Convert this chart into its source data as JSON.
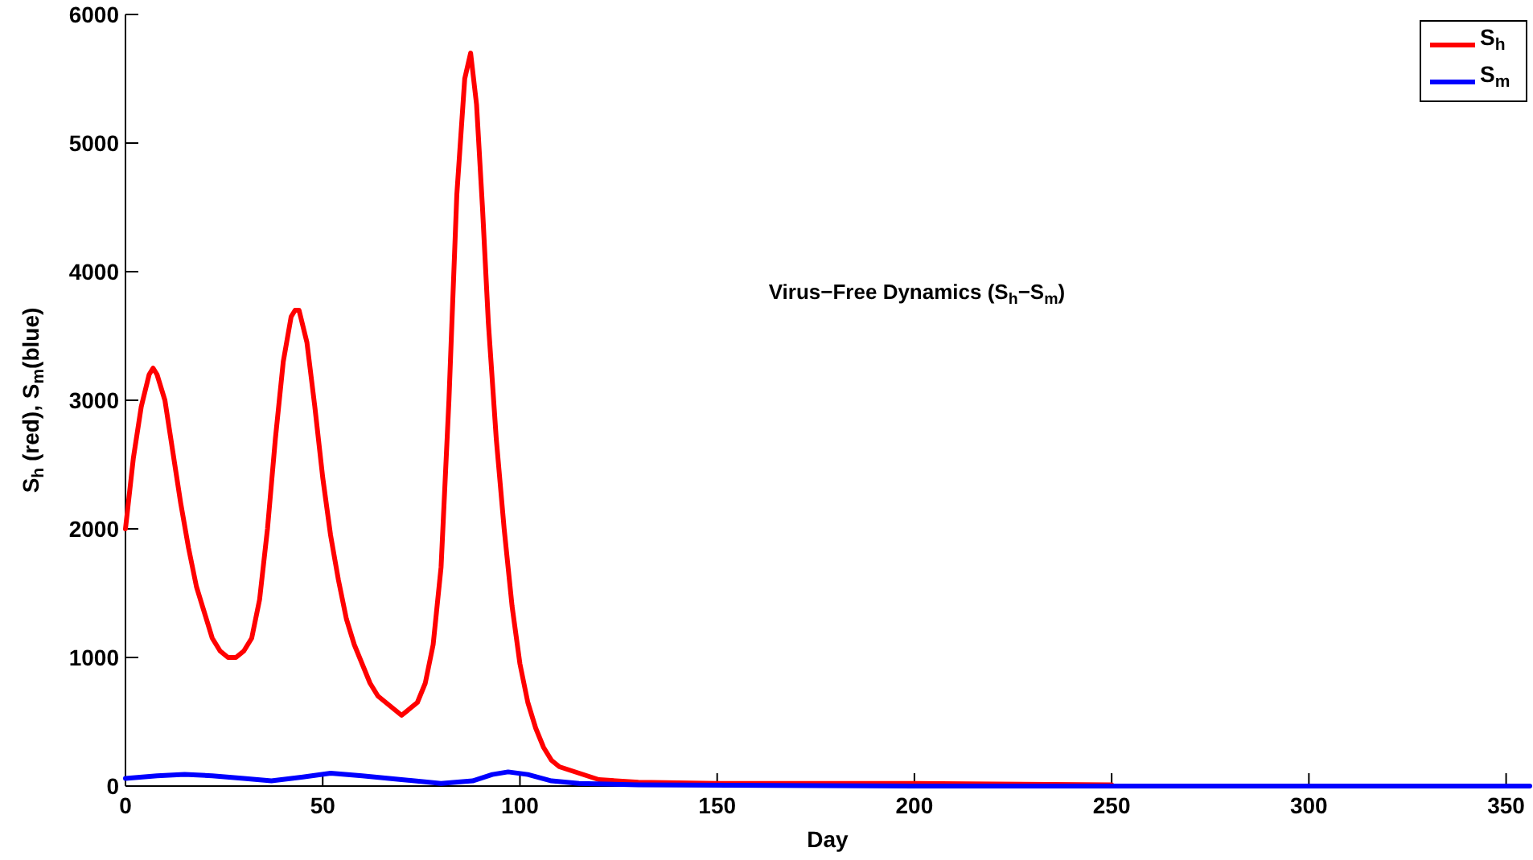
{
  "chart_data": {
    "type": "line",
    "xlabel": "Day",
    "ylabel": "S$_{h}$ (red), S$_{m}$(blue)",
    "annotations": [
      "Virus−Free Dynamics (S$_{h}$−S$_{m}$)"
    ],
    "xlim": [
      0,
      356
    ],
    "ylim": [
      0,
      6000
    ],
    "xticks": [
      0,
      50,
      100,
      150,
      200,
      250,
      300,
      350
    ],
    "yticks": [
      0,
      1000,
      2000,
      3000,
      4000,
      5000,
      6000
    ],
    "grid": false,
    "legend": "top right",
    "line_style": "solid",
    "series": [
      {
        "name": "S$_{h}$",
        "color": "#ff0000",
        "x": [
          0,
          2,
          4,
          6,
          7,
          8,
          10,
          12,
          14,
          16,
          18,
          20,
          22,
          24,
          26,
          28,
          30,
          32,
          34,
          36,
          38,
          40,
          42,
          43,
          44,
          46,
          48,
          50,
          52,
          54,
          56,
          58,
          60,
          62,
          64,
          66,
          68,
          70,
          72,
          74,
          76,
          78,
          80,
          82,
          84,
          86,
          87.5,
          89,
          90.5,
          92,
          94,
          96,
          98,
          100,
          102,
          104,
          106,
          108,
          110,
          115,
          120,
          130,
          150,
          200,
          250
        ],
        "values": [
          2000,
          2550,
          2950,
          3200,
          3250,
          3200,
          3000,
          2600,
          2200,
          1850,
          1550,
          1350,
          1150,
          1050,
          1000,
          1000,
          1050,
          1150,
          1450,
          2000,
          2700,
          3300,
          3650,
          3700,
          3700,
          3450,
          2950,
          2400,
          1950,
          1600,
          1300,
          1100,
          950,
          800,
          700,
          650,
          600,
          550,
          600,
          650,
          800,
          1100,
          1700,
          3000,
          4600,
          5500,
          5700,
          5300,
          4500,
          3600,
          2700,
          2000,
          1400,
          950,
          650,
          450,
          300,
          200,
          150,
          100,
          50,
          30,
          20,
          20,
          10
        ]
      },
      {
        "name": "S$_{m}$",
        "color": "#0000ff",
        "x": [
          0,
          8,
          15,
          22,
          30,
          37,
          45,
          52,
          60,
          70,
          80,
          88,
          93,
          97,
          102,
          108,
          115,
          130,
          200,
          356
        ],
        "values": [
          60,
          80,
          90,
          80,
          60,
          40,
          70,
          100,
          80,
          50,
          20,
          40,
          90,
          110,
          90,
          40,
          20,
          10,
          0,
          0
        ]
      }
    ]
  }
}
